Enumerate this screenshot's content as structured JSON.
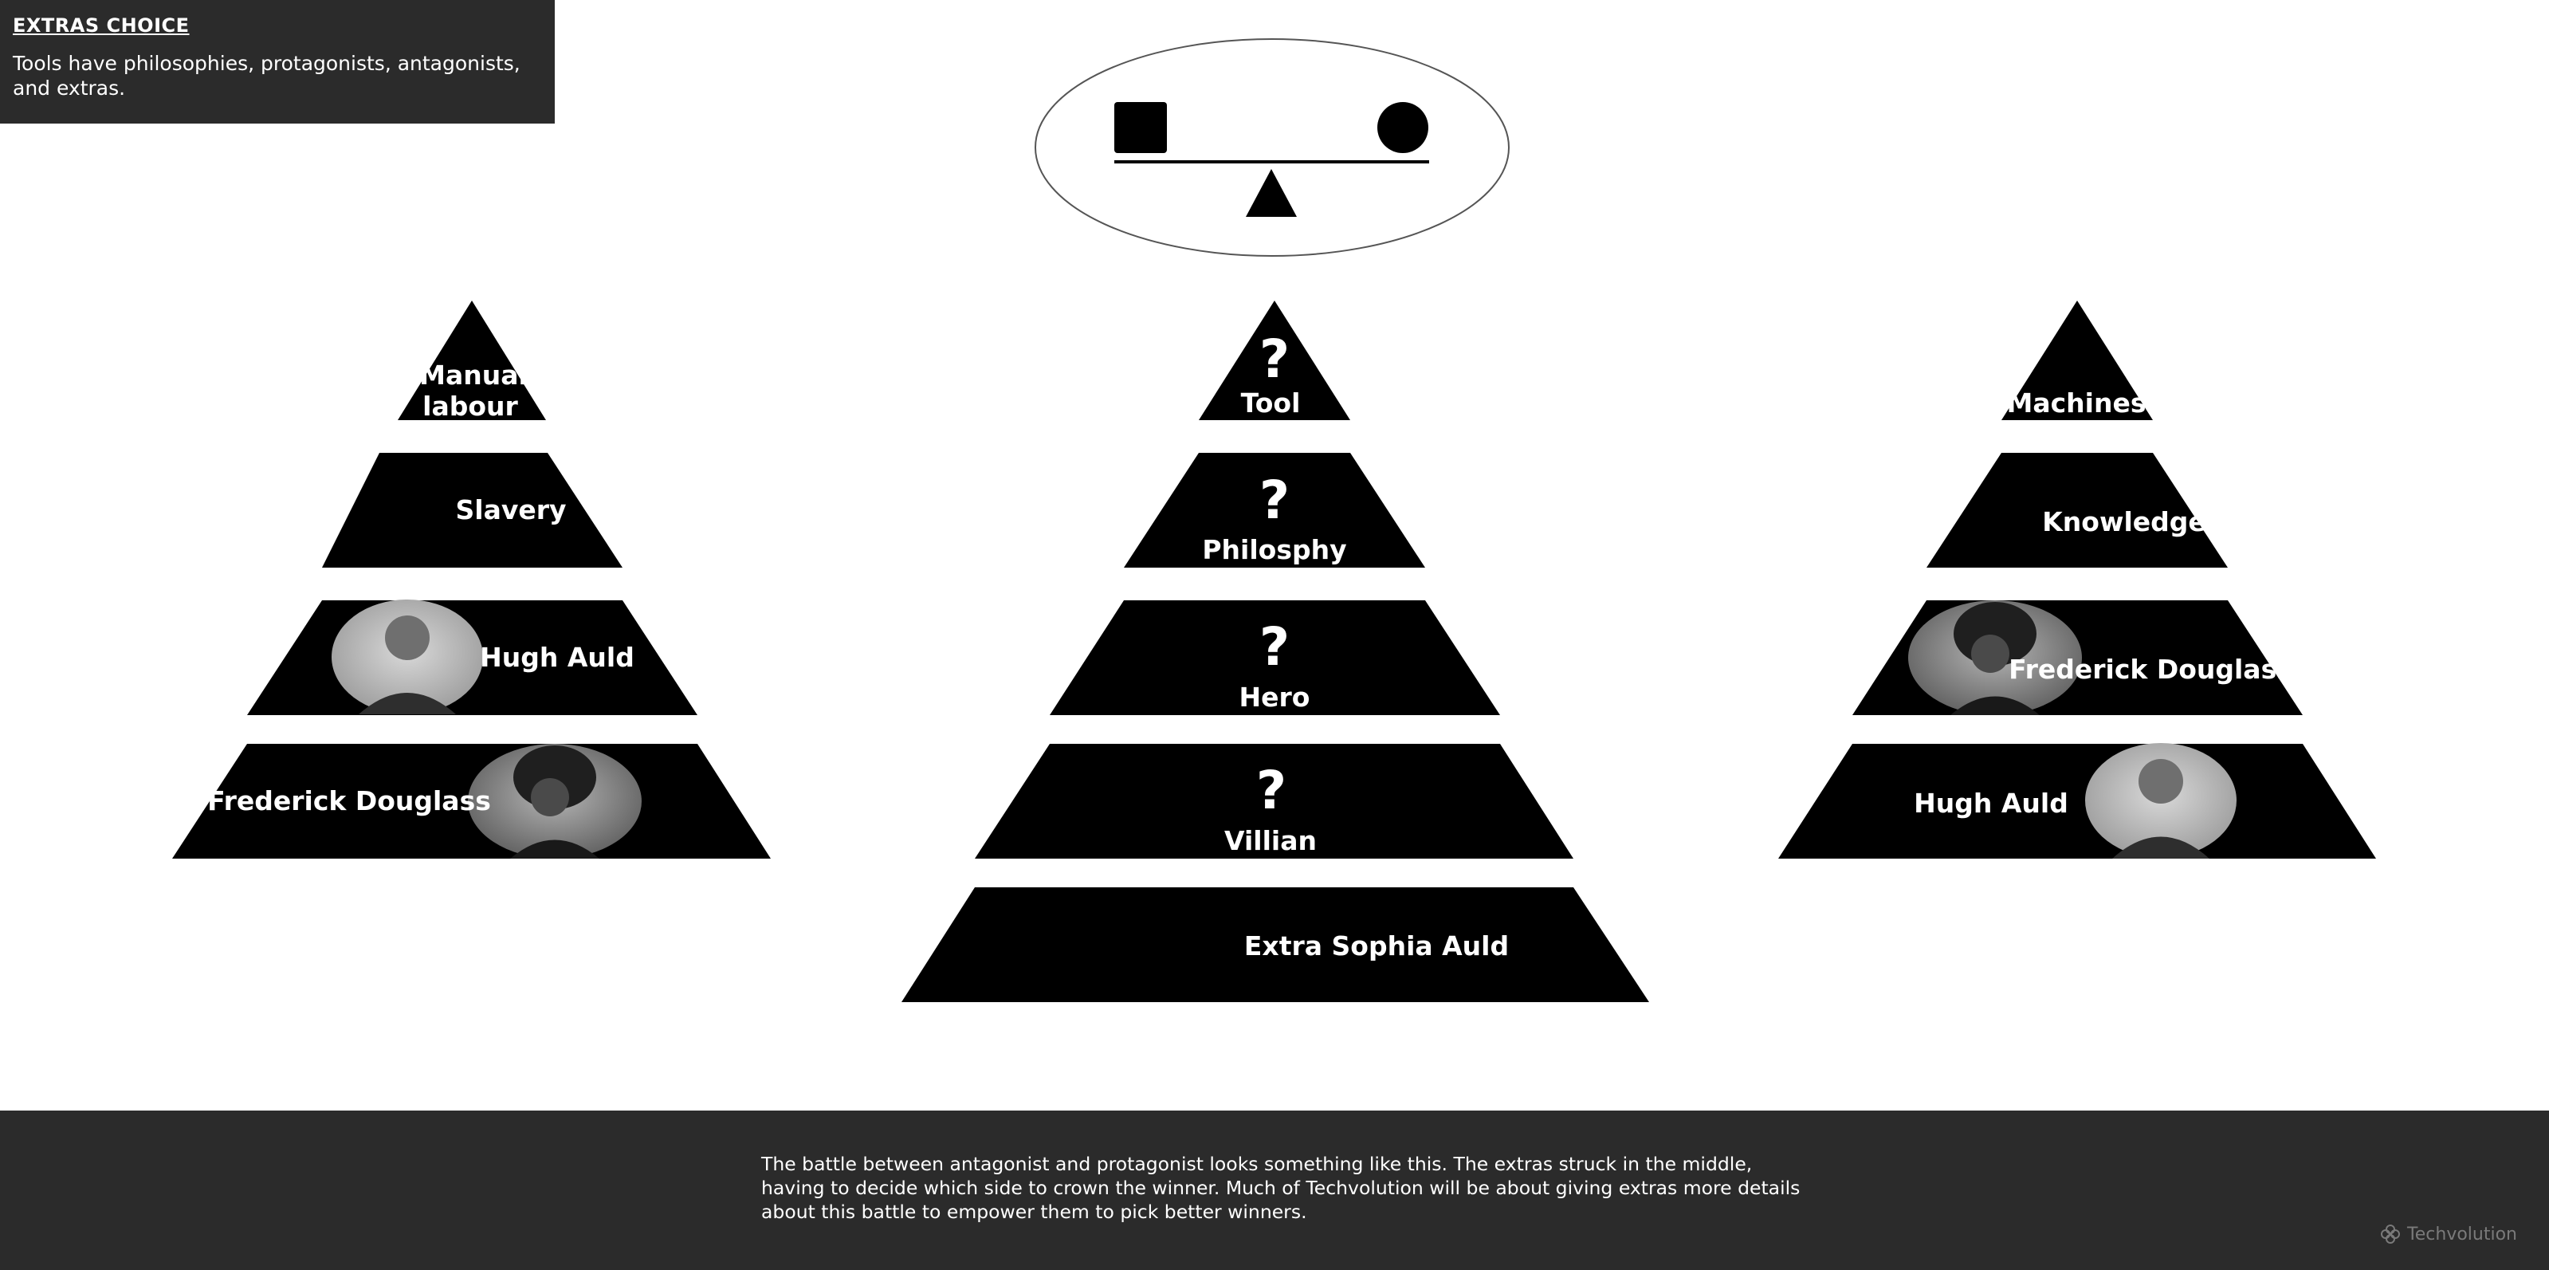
{
  "header": {
    "title": "EXTRAS CHOICE",
    "subtitle": "Tools have philosophies, protagonists, antagonists, and extras."
  },
  "left_pyramid": {
    "tier1_line1": "Manual",
    "tier1_line2": "labour",
    "tier2": "Slavery",
    "tier3": "Hugh Auld",
    "tier4": "Frederick Douglass"
  },
  "center_pyramid": {
    "tier1": "Tool",
    "tier2": "Philosphy",
    "tier3": "Hero",
    "tier4": "Villian",
    "tier5": "Extra Sophia Auld",
    "question_mark": "?"
  },
  "right_pyramid": {
    "tier1": "Machines",
    "tier2": "Knowledge",
    "tier3": "Frederick Douglass",
    "tier4": "Hugh Auld"
  },
  "footer": {
    "text": "The battle between antagonist and protagonist looks something like this. The extras struck in the middle, having to decide which side to crown the winner.  Much of Techvolution will be about giving extras more details about this battle to empower them to pick better winners.",
    "brand": "Techvolution"
  },
  "colors": {
    "dark_panel": "#2b2b2b",
    "pyramid": "#000000",
    "text_light": "#ffffff"
  }
}
